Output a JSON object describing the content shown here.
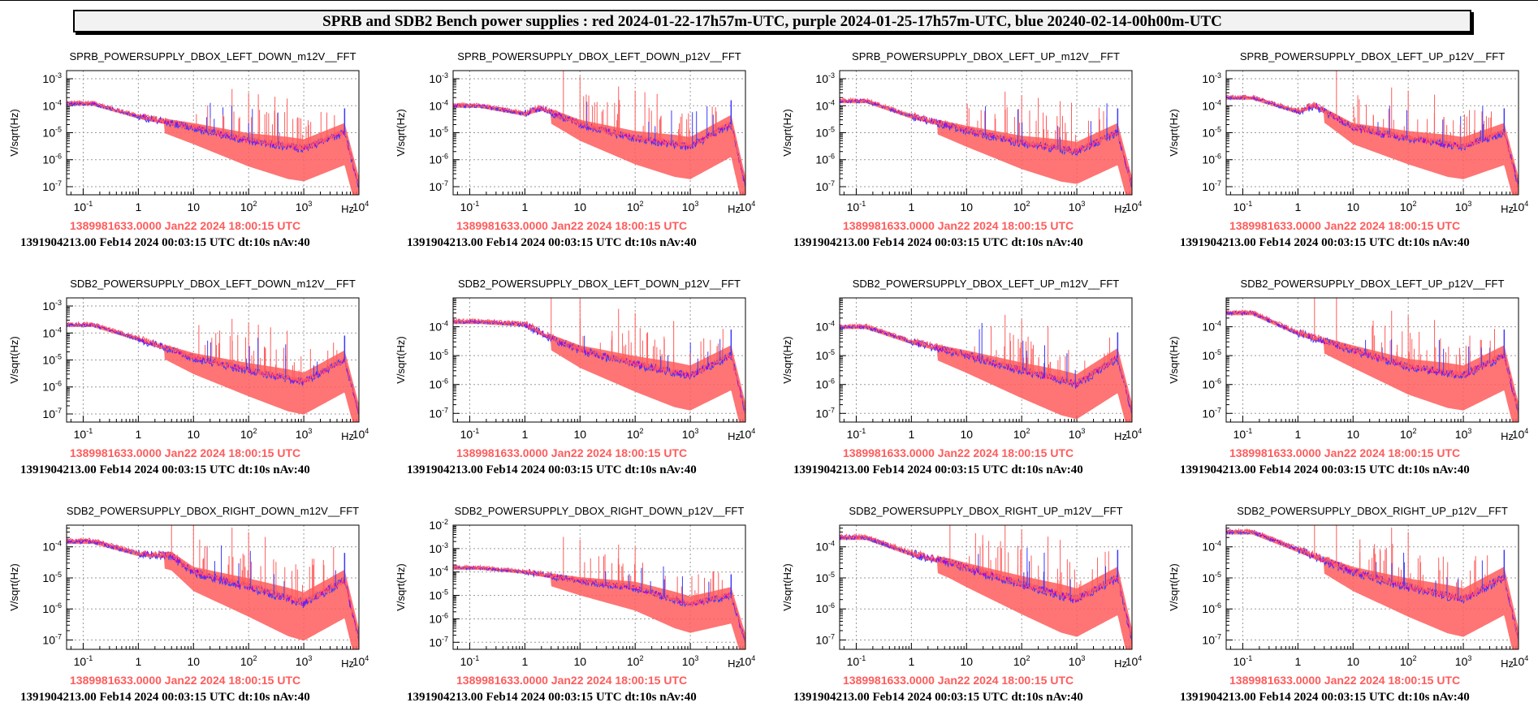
{
  "page_title": "SPRB and SDB2 Bench power supplies : red 2024-01-22-17h57m-UTC, purple 2024-01-25-17h57m-UTC, blue 20240-02-14-00h00m-UTC",
  "colors": {
    "red": "#ff5c5c",
    "purple": "#b400d2",
    "blue": "#3a3aff",
    "grid": "#9a9a9a"
  },
  "chart_data": [
    {
      "type": "line",
      "title": "SPRB_POWERSUPPLY_DBOX_LEFT_DOWN_m12V__FFT",
      "ylabel": "V/sqrt(Hz)",
      "xlabel": "Hz",
      "xscale": "log",
      "yscale": "log",
      "xlim": [
        0.05,
        10000
      ],
      "ylim": [
        5e-08,
        0.002
      ],
      "x_ticks": [
        "10-1",
        "1",
        "10",
        "102",
        "103",
        "104"
      ],
      "y_ticks": [
        "10-7",
        "10-6",
        "10-5",
        "10-4",
        "10-3"
      ],
      "series": [
        {
          "color": "red",
          "values": [
            [
              0.05,
              0.00012
            ],
            [
              0.15,
              0.00012
            ],
            [
              1,
              4e-05
            ],
            [
              10,
              1.5e-05
            ],
            [
              100,
              5e-06
            ],
            [
              1000,
              2.5e-06
            ],
            [
              5500,
              1e-05
            ],
            [
              10000,
              1e-07
            ]
          ]
        }
      ],
      "spikes": [
        50,
        100,
        150,
        300,
        500
      ],
      "footer_red": "1389981633.0000 Jan22 2024 18:00:15 UTC",
      "footer_black": "1391904213.00 Feb14 2024 00:03:15 UTC dt:10s nAv:40"
    },
    {
      "type": "line",
      "title": "SPRB_POWERSUPPLY_DBOX_LEFT_DOWN_p12V__FFT",
      "ylabel": "V/sqrt(Hz)",
      "xlabel": "Hz",
      "xscale": "log",
      "yscale": "log",
      "xlim": [
        0.05,
        10000
      ],
      "ylim": [
        5e-08,
        0.002
      ],
      "x_ticks": [
        "10-1",
        "1",
        "10",
        "102",
        "103",
        "104"
      ],
      "y_ticks": [
        "10-7",
        "10-6",
        "10-5",
        "10-4",
        "10-3"
      ],
      "series": [
        {
          "color": "red",
          "values": [
            [
              0.05,
              0.0001
            ],
            [
              0.15,
              0.0001
            ],
            [
              1,
              5e-05
            ],
            [
              2,
              8e-05
            ],
            [
              10,
              2e-05
            ],
            [
              100,
              6e-06
            ],
            [
              1000,
              3e-06
            ],
            [
              5500,
              2e-05
            ],
            [
              10000,
              1e-07
            ]
          ]
        }
      ],
      "spikes": [
        5,
        10,
        50,
        100,
        150,
        250
      ],
      "footer_red": "1389981633.0000 Jan22 2024 18:00:15 UTC",
      "footer_black": "1391904213.00 Feb14 2024 00:03:15 UTC dt:10s nAv:40"
    },
    {
      "type": "line",
      "title": "SPRB_POWERSUPPLY_DBOX_LEFT_UP_m12V__FFT",
      "ylabel": "V/sqrt(Hz)",
      "xlabel": "Hz",
      "xscale": "log",
      "yscale": "log",
      "xlim": [
        0.05,
        10000
      ],
      "ylim": [
        5e-08,
        0.002
      ],
      "x_ticks": [
        "10-1",
        "1",
        "10",
        "102",
        "103",
        "104"
      ],
      "y_ticks": [
        "10-7",
        "10-6",
        "10-5",
        "10-4",
        "10-3"
      ],
      "series": [
        {
          "color": "red",
          "values": [
            [
              0.05,
              0.00015
            ],
            [
              0.15,
              0.00015
            ],
            [
              1,
              4e-05
            ],
            [
              10,
              1.2e-05
            ],
            [
              100,
              4e-06
            ],
            [
              1000,
              2e-06
            ],
            [
              5500,
              1e-05
            ],
            [
              10000,
              1e-07
            ]
          ]
        }
      ],
      "spikes": [
        50,
        100,
        200,
        500,
        800
      ],
      "footer_red": "1389981633.0000 Jan22 2024 18:00:15 UTC",
      "footer_black": "1391904213.00 Feb14 2024 00:03:15 UTC dt:10s nAv:40"
    },
    {
      "type": "line",
      "title": "SPRB_POWERSUPPLY_DBOX_LEFT_UP_p12V__FFT",
      "ylabel": "V/sqrt(Hz)",
      "xlabel": "Hz",
      "xscale": "log",
      "yscale": "log",
      "xlim": [
        0.05,
        10000
      ],
      "ylim": [
        5e-08,
        0.002
      ],
      "x_ticks": [
        "10-1",
        "1",
        "10",
        "102",
        "103",
        "104"
      ],
      "y_ticks": [
        "10-7",
        "10-6",
        "10-5",
        "10-4",
        "10-3"
      ],
      "series": [
        {
          "color": "red",
          "values": [
            [
              0.05,
              0.0002
            ],
            [
              0.15,
              0.0002
            ],
            [
              1,
              6e-05
            ],
            [
              2,
              0.0001
            ],
            [
              10,
              1.5e-05
            ],
            [
              100,
              6e-06
            ],
            [
              1000,
              3e-06
            ],
            [
              5500,
              1e-05
            ],
            [
              10000,
              1e-07
            ]
          ]
        }
      ],
      "spikes": [
        5,
        50,
        100,
        300
      ],
      "footer_red": "1389981633.0000 Jan22 2024 18:00:15 UTC",
      "footer_black": "1391904213.00 Feb14 2024 00:03:15 UTC dt:10s nAv:40"
    },
    {
      "type": "line",
      "title": "SDB2_POWERSUPPLY_DBOX_LEFT_DOWN_m12V__FFT",
      "ylabel": "V/sqrt(Hz)",
      "xlabel": "Hz",
      "xscale": "log",
      "yscale": "log",
      "xlim": [
        0.05,
        10000
      ],
      "ylim": [
        5e-08,
        0.002
      ],
      "x_ticks": [
        "10-1",
        "1",
        "10",
        "102",
        "103",
        "104"
      ],
      "y_ticks": [
        "10-7",
        "10-6",
        "10-5",
        "10-4",
        "10-3"
      ],
      "series": [
        {
          "color": "red",
          "values": [
            [
              0.05,
              0.0002
            ],
            [
              0.15,
              0.0002
            ],
            [
              1,
              6e-05
            ],
            [
              10,
              1.2e-05
            ],
            [
              100,
              4e-06
            ],
            [
              1000,
              1.5e-06
            ],
            [
              5500,
              1e-05
            ],
            [
              10000,
              1e-07
            ]
          ]
        }
      ],
      "spikes": [
        50,
        100,
        150,
        250,
        500
      ],
      "footer_red": "1389981633.0000 Jan22 2024 18:00:15 UTC",
      "footer_black": "1391904213.00 Feb14 2024 00:03:15 UTC dt:10s nAv:40"
    },
    {
      "type": "line",
      "title": "SDB2_POWERSUPPLY_DBOX_LEFT_DOWN_p12V__FFT",
      "ylabel": "V/sqrt(Hz)",
      "xlabel": "Hz",
      "xscale": "log",
      "yscale": "log",
      "xlim": [
        0.05,
        10000
      ],
      "ylim": [
        5e-08,
        0.001
      ],
      "x_ticks": [
        "10-1",
        "1",
        "10",
        "102",
        "103",
        "104"
      ],
      "y_ticks": [
        "10-7",
        "10-6",
        "10-5",
        "10-4"
      ],
      "series": [
        {
          "color": "red",
          "values": [
            [
              0.05,
              0.00015
            ],
            [
              0.15,
              0.00015
            ],
            [
              1,
              0.00012
            ],
            [
              3,
              4e-05
            ],
            [
              10,
              1.5e-05
            ],
            [
              100,
              5e-06
            ],
            [
              1000,
              2e-06
            ],
            [
              5500,
              1e-05
            ],
            [
              10000,
              1e-07
            ]
          ]
        }
      ],
      "spikes": [
        3,
        10,
        50,
        100,
        500
      ],
      "footer_red": "1389981633.0000 Jan22 2024 18:00:15 UTC",
      "footer_black": "1391904213.00 Feb14 2024 00:03:15 UTC dt:10s nAv:40"
    },
    {
      "type": "line",
      "title": "SDB2_POWERSUPPLY_DBOX_LEFT_UP_m12V__FFT",
      "ylabel": "V/sqrt(Hz)",
      "xlabel": "Hz",
      "xscale": "log",
      "yscale": "log",
      "xlim": [
        0.05,
        10000
      ],
      "ylim": [
        5e-08,
        0.001
      ],
      "x_ticks": [
        "10-1",
        "1",
        "10",
        "102",
        "103",
        "104"
      ],
      "y_ticks": [
        "10-7",
        "10-6",
        "10-5",
        "10-4"
      ],
      "series": [
        {
          "color": "red",
          "values": [
            [
              0.05,
              0.0001
            ],
            [
              0.15,
              0.0001
            ],
            [
              1,
              3e-05
            ],
            [
              10,
              1e-05
            ],
            [
              100,
              3e-06
            ],
            [
              1000,
              1e-06
            ],
            [
              5500,
              8e-06
            ],
            [
              10000,
              1e-07
            ]
          ]
        }
      ],
      "spikes": [
        50,
        100,
        300
      ],
      "footer_red": "1389981633.0000 Jan22 2024 18:00:15 UTC",
      "footer_black": "1391904213.00 Feb14 2024 00:03:15 UTC dt:10s nAv:40"
    },
    {
      "type": "line",
      "title": "SDB2_POWERSUPPLY_DBOX_LEFT_UP_p12V__FFT",
      "ylabel": "V/sqrt(Hz)",
      "xlabel": "Hz",
      "xscale": "log",
      "yscale": "log",
      "xlim": [
        0.05,
        10000
      ],
      "ylim": [
        5e-08,
        0.001
      ],
      "x_ticks": [
        "10-1",
        "1",
        "10",
        "102",
        "103",
        "104"
      ],
      "y_ticks": [
        "10-7",
        "10-6",
        "10-5",
        "10-4"
      ],
      "series": [
        {
          "color": "red",
          "values": [
            [
              0.05,
              0.0003
            ],
            [
              0.15,
              0.0003
            ],
            [
              1,
              6e-05
            ],
            [
              10,
              1.5e-05
            ],
            [
              100,
              4e-06
            ],
            [
              1000,
              2e-06
            ],
            [
              5500,
              1e-05
            ],
            [
              10000,
              1e-07
            ]
          ]
        }
      ],
      "spikes": [
        2,
        5,
        50,
        100,
        300
      ],
      "footer_red": "1389981633.0000 Jan22 2024 18:00:15 UTC",
      "footer_black": "1391904213.00 Feb14 2024 00:03:15 UTC dt:10s nAv:40"
    },
    {
      "type": "line",
      "title": "SDB2_POWERSUPPLY_DBOX_RIGHT_DOWN_m12V__FFT",
      "ylabel": "V/sqrt(Hz)",
      "xlabel": "Hz",
      "xscale": "log",
      "yscale": "log",
      "xlim": [
        0.05,
        10000
      ],
      "ylim": [
        5e-08,
        0.0005
      ],
      "x_ticks": [
        "10-1",
        "1",
        "10",
        "102",
        "103",
        "104"
      ],
      "y_ticks": [
        "10-7",
        "10-6",
        "10-5",
        "10-4"
      ],
      "series": [
        {
          "color": "red",
          "values": [
            [
              0.05,
              0.00015
            ],
            [
              0.15,
              0.00015
            ],
            [
              1,
              6e-05
            ],
            [
              4,
              5e-05
            ],
            [
              10,
              1.5e-05
            ],
            [
              100,
              5e-06
            ],
            [
              1000,
              1.5e-06
            ],
            [
              5500,
              8e-06
            ],
            [
              10000,
              1e-07
            ]
          ]
        }
      ],
      "spikes": [
        4,
        10,
        50,
        100,
        200
      ],
      "footer_red": "1389981633.0000 Jan22 2024 18:00:15 UTC",
      "footer_black": "1391904213.00 Feb14 2024 00:03:15 UTC dt:10s nAv:40"
    },
    {
      "type": "line",
      "title": "SDB2_POWERSUPPLY_DBOX_RIGHT_DOWN_p12V__FFT",
      "ylabel": "V/sqrt(Hz)",
      "xlabel": "Hz",
      "xscale": "log",
      "yscale": "log",
      "xlim": [
        0.05,
        10000
      ],
      "ylim": [
        5e-08,
        0.01
      ],
      "x_ticks": [
        "10-1",
        "1",
        "10",
        "102",
        "103",
        "104"
      ],
      "y_ticks": [
        "10-7",
        "10-6",
        "10-5",
        "10-4",
        "10-3",
        "10-2"
      ],
      "series": [
        {
          "color": "red",
          "values": [
            [
              0.05,
              0.00015
            ],
            [
              0.15,
              0.00015
            ],
            [
              1,
              0.0001
            ],
            [
              10,
              4e-05
            ],
            [
              100,
              2e-05
            ],
            [
              1000,
              4e-06
            ],
            [
              5500,
              1e-05
            ],
            [
              10000,
              1e-07
            ]
          ]
        }
      ],
      "spikes": [
        5,
        10,
        50,
        100
      ],
      "footer_red": "1389981633.0000 Jan22 2024 18:00:15 UTC",
      "footer_black": "1391904213.00 Feb14 2024 00:03:15 UTC dt:10s nAv:40"
    },
    {
      "type": "line",
      "title": "SDB2_POWERSUPPLY_DBOX_RIGHT_UP_m12V__FFT",
      "ylabel": "V/sqrt(Hz)",
      "xlabel": "Hz",
      "xscale": "log",
      "yscale": "log",
      "xlim": [
        0.05,
        10000
      ],
      "ylim": [
        5e-08,
        0.0005
      ],
      "x_ticks": [
        "10-1",
        "1",
        "10",
        "102",
        "103",
        "104"
      ],
      "y_ticks": [
        "10-7",
        "10-6",
        "10-5",
        "10-4"
      ],
      "series": [
        {
          "color": "red",
          "values": [
            [
              0.05,
              0.0002
            ],
            [
              0.15,
              0.0002
            ],
            [
              1,
              6e-05
            ],
            [
              5,
              3e-05
            ],
            [
              10,
              2e-05
            ],
            [
              100,
              6e-06
            ],
            [
              1000,
              2e-06
            ],
            [
              5500,
              1e-05
            ],
            [
              10000,
              1e-07
            ]
          ]
        }
      ],
      "spikes": [
        5,
        50,
        100,
        300,
        500
      ],
      "footer_red": "1389981633.0000 Jan22 2024 18:00:15 UTC",
      "footer_black": "1391904213.00 Feb14 2024 00:03:15 UTC dt:10s nAv:40"
    },
    {
      "type": "line",
      "title": "SDB2_POWERSUPPLY_DBOX_RIGHT_UP_p12V__FFT",
      "ylabel": "V/sqrt(Hz)",
      "xlabel": "Hz",
      "xscale": "log",
      "yscale": "log",
      "xlim": [
        0.05,
        10000
      ],
      "ylim": [
        5e-08,
        0.0005
      ],
      "x_ticks": [
        "10-1",
        "1",
        "10",
        "102",
        "103",
        "104"
      ],
      "y_ticks": [
        "10-7",
        "10-6",
        "10-5",
        "10-4"
      ],
      "series": [
        {
          "color": "red",
          "values": [
            [
              0.05,
              0.0003
            ],
            [
              0.15,
              0.0003
            ],
            [
              1,
              8e-05
            ],
            [
              10,
              1.5e-05
            ],
            [
              100,
              5e-06
            ],
            [
              1000,
              2e-06
            ],
            [
              5500,
              1e-05
            ],
            [
              10000,
              1e-07
            ]
          ]
        }
      ],
      "spikes": [
        2,
        5,
        50,
        100
      ],
      "footer_red": "1389981633.0000 Jan22 2024 18:00:15 UTC",
      "footer_black": "1391904213.00 Feb14 2024 00:03:15 UTC dt:10s nAv:40"
    }
  ]
}
